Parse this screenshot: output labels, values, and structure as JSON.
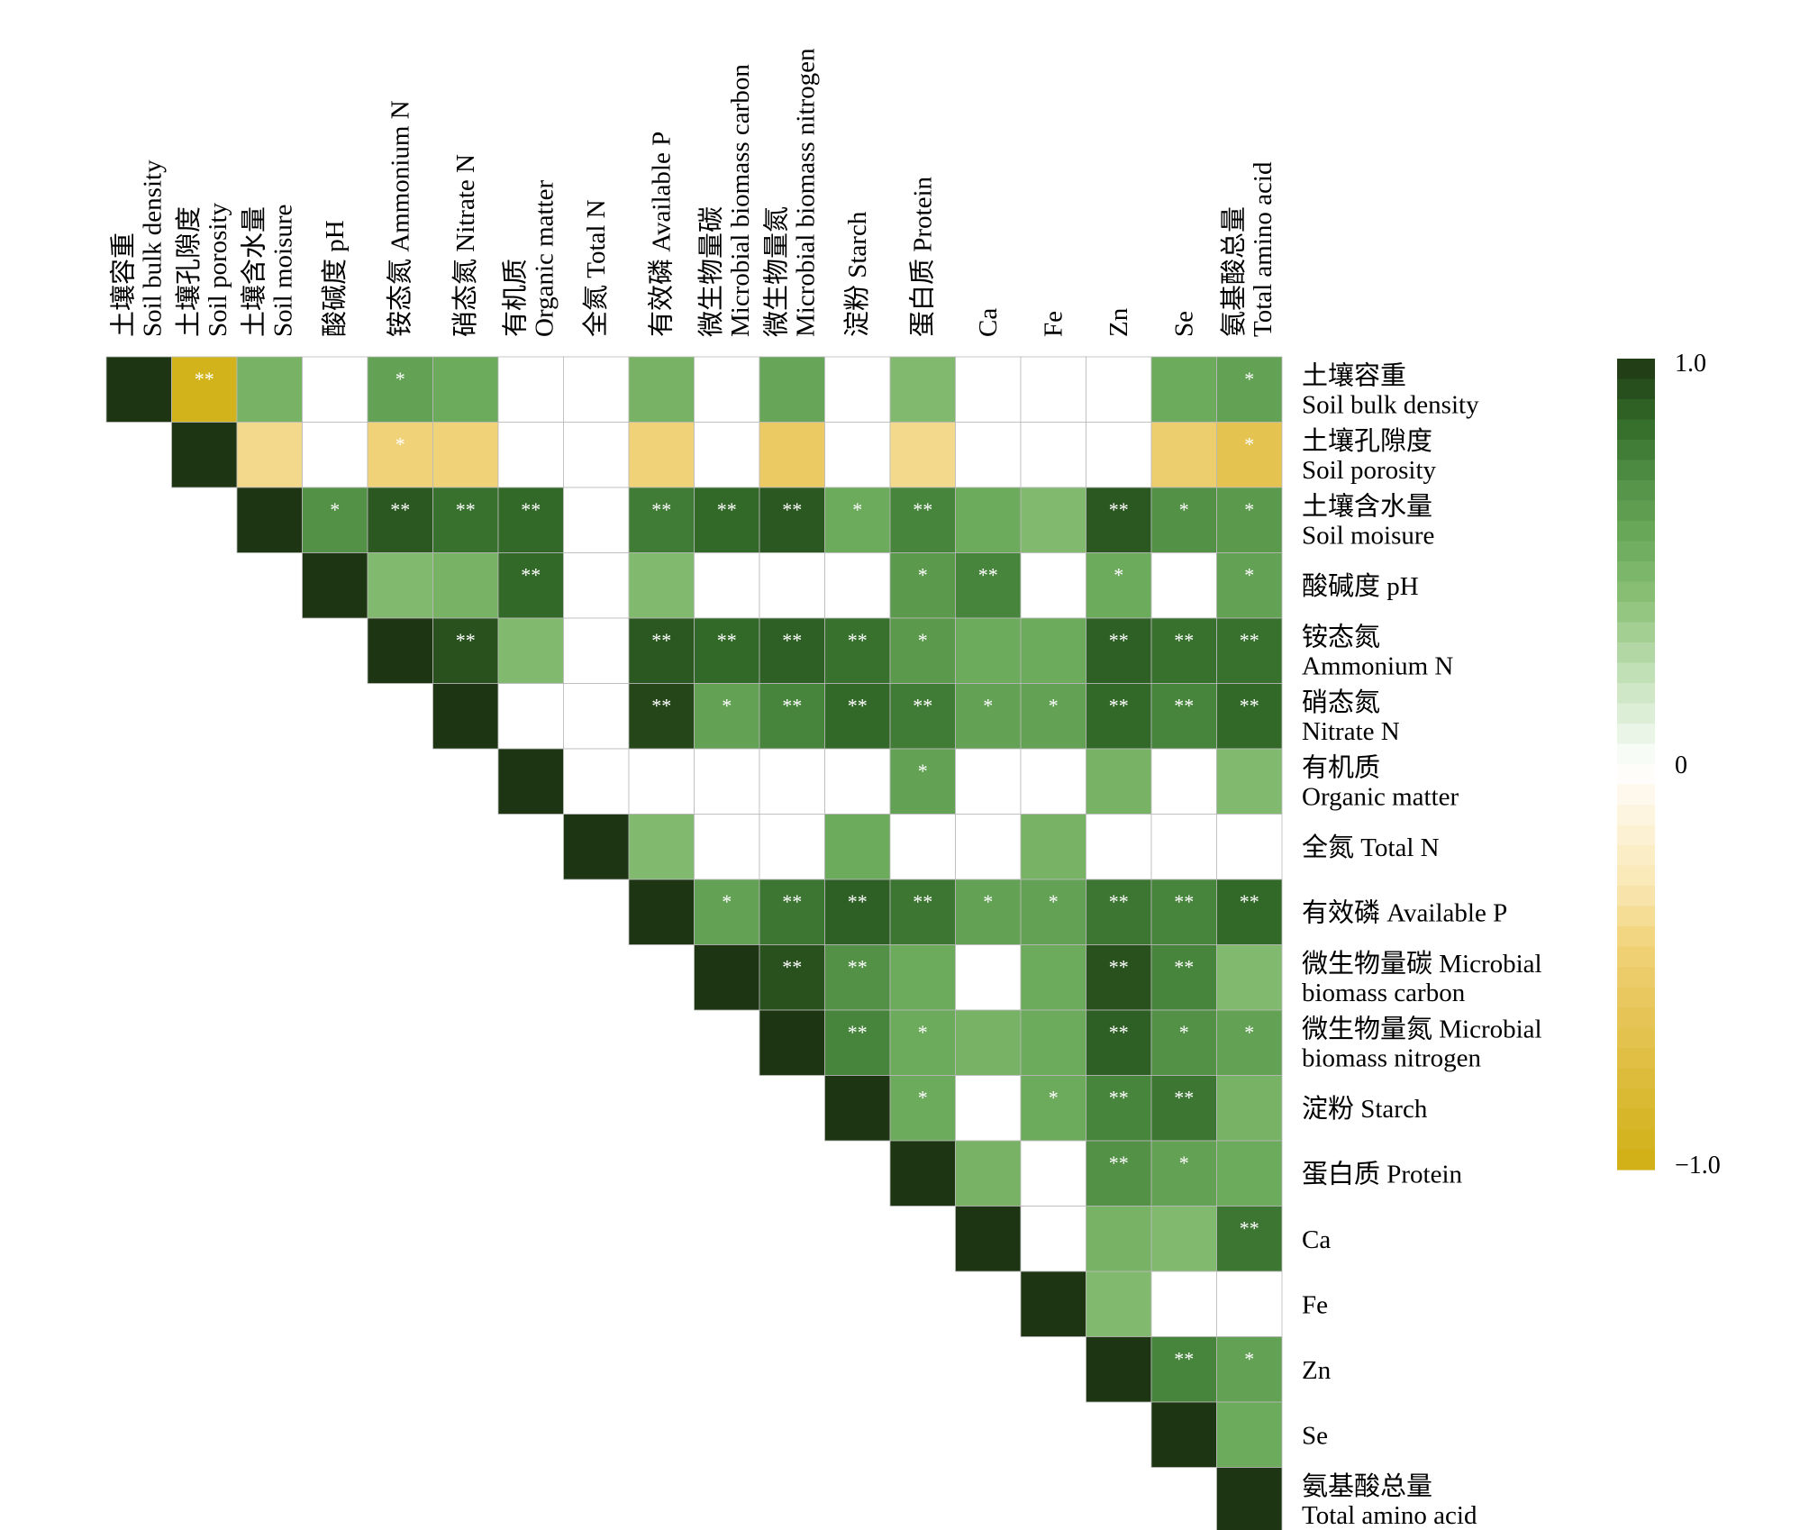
{
  "chart_data": {
    "type": "heatmap",
    "layout": "upper-triangle correlation matrix",
    "variables": [
      {
        "zh": "土壤容重",
        "en": "Soil bulk density"
      },
      {
        "zh": "土壤孔隙度",
        "en": "Soil porosity"
      },
      {
        "zh": "土壤含水量",
        "en": "Soil moisure"
      },
      {
        "zh": "酸碱度",
        "en": "pH"
      },
      {
        "zh": "铵态氮",
        "en": "Ammonium N"
      },
      {
        "zh": "硝态氮",
        "en": "Nitrate N"
      },
      {
        "zh": "有机质",
        "en": "Organic matter"
      },
      {
        "zh": "全氮",
        "en": "Total N"
      },
      {
        "zh": "有效磷",
        "en": "Available P"
      },
      {
        "zh": "微生物量碳",
        "en": "Microbial biomass carbon"
      },
      {
        "zh": "微生物量氮",
        "en": "Microbial biomass nitrogen"
      },
      {
        "zh": "淀粉",
        "en": "Starch"
      },
      {
        "zh": "蛋白质",
        "en": "Protein"
      },
      {
        "zh": "",
        "en": "Ca"
      },
      {
        "zh": "",
        "en": "Fe"
      },
      {
        "zh": "",
        "en": "Zn"
      },
      {
        "zh": "",
        "en": "Se"
      },
      {
        "zh": "氨基酸总量",
        "en": "Total amino acid"
      }
    ],
    "row_labels": [
      {
        "line1": "土壤容重",
        "line2": "Soil bulk density"
      },
      {
        "line1": "土壤孔隙度",
        "line2": "Soil porosity"
      },
      {
        "line1": "土壤含水量",
        "line2": "Soil moisure"
      },
      {
        "line1": "酸碱度 pH",
        "line2": ""
      },
      {
        "line1": "铵态氮",
        "line2": "Ammonium N"
      },
      {
        "line1": "硝态氮",
        "line2": "Nitrate N"
      },
      {
        "line1": "有机质",
        "line2": "Organic matter"
      },
      {
        "line1": "全氮 Total N",
        "line2": ""
      },
      {
        "line1": "有效磷 Available P",
        "line2": ""
      },
      {
        "line1": "微生物量碳 Microbial",
        "line2": "biomass carbon"
      },
      {
        "line1": "微生物量氮 Microbial",
        "line2": "biomass nitrogen"
      },
      {
        "line1": "淀粉 Starch",
        "line2": ""
      },
      {
        "line1": "蛋白质 Protein",
        "line2": ""
      },
      {
        "line1": "Ca",
        "line2": ""
      },
      {
        "line1": "Fe",
        "line2": ""
      },
      {
        "line1": "Zn",
        "line2": ""
      },
      {
        "line1": "Se",
        "line2": ""
      },
      {
        "line1": "氨基酸总量",
        "line2": "Total amino acid"
      }
    ],
    "col_labels": [
      {
        "line1": "土壤容重",
        "line2": "Soil bulk density"
      },
      {
        "line1": "土壤孔隙度",
        "line2": "Soil porosity"
      },
      {
        "line1": "土壤含水量",
        "line2": "Soil moisure"
      },
      {
        "line1": "酸碱度 pH",
        "line2": ""
      },
      {
        "line1": "铵态氮 Ammonium N",
        "line2": ""
      },
      {
        "line1": "硝态氮 Nitrate N",
        "line2": ""
      },
      {
        "line1": "有机质",
        "line2": "Organic matter"
      },
      {
        "line1": "全氮 Total N",
        "line2": ""
      },
      {
        "line1": "有效磷 Available P",
        "line2": ""
      },
      {
        "line1": "微生物量碳",
        "line2": "Microbial biomass carbon"
      },
      {
        "line1": "微生物量氮",
        "line2": "Microbial biomass nitrogen"
      },
      {
        "line1": "淀粉 Starch",
        "line2": ""
      },
      {
        "line1": "蛋白质 Protein",
        "line2": ""
      },
      {
        "line1": "Ca",
        "line2": ""
      },
      {
        "line1": "Fe",
        "line2": ""
      },
      {
        "line1": "Zn",
        "line2": ""
      },
      {
        "line1": "Se",
        "line2": ""
      },
      {
        "line1": "氨基酸总量",
        "line2": "Total amino acid"
      }
    ],
    "values": [
      [
        1.0,
        -0.95,
        0.5,
        0.0,
        0.6,
        0.55,
        0.0,
        0.0,
        0.5,
        0.0,
        0.58,
        0.0,
        0.45,
        0.0,
        0.0,
        0.0,
        0.55,
        0.6
      ],
      [
        null,
        1.0,
        -0.4,
        0.0,
        -0.45,
        -0.45,
        0.0,
        0.0,
        -0.45,
        0.0,
        -0.55,
        0.0,
        -0.4,
        0.0,
        0.0,
        0.0,
        -0.5,
        -0.65
      ],
      [
        null,
        null,
        1.0,
        0.7,
        0.9,
        0.82,
        0.85,
        0.0,
        0.78,
        0.85,
        0.9,
        0.55,
        0.75,
        0.55,
        0.45,
        0.9,
        0.7,
        0.65
      ],
      [
        null,
        null,
        null,
        1.0,
        0.45,
        0.5,
        0.85,
        0.0,
        0.45,
        0.0,
        0.0,
        0.0,
        0.65,
        0.75,
        0.0,
        0.55,
        0.0,
        0.6
      ],
      [
        null,
        null,
        null,
        null,
        1.0,
        0.92,
        0.45,
        0.0,
        0.9,
        0.85,
        0.88,
        0.82,
        0.65,
        0.55,
        0.55,
        0.88,
        0.82,
        0.82
      ],
      [
        null,
        null,
        null,
        null,
        null,
        1.0,
        0.0,
        0.0,
        0.95,
        0.6,
        0.75,
        0.85,
        0.78,
        0.6,
        0.6,
        0.85,
        0.75,
        0.85
      ],
      [
        null,
        null,
        null,
        null,
        null,
        null,
        1.0,
        0.0,
        0.0,
        0.0,
        0.0,
        0.0,
        0.6,
        0.0,
        0.0,
        0.5,
        0.0,
        0.45
      ],
      [
        null,
        null,
        null,
        null,
        null,
        null,
        null,
        1.0,
        0.45,
        0.0,
        0.0,
        0.55,
        0.0,
        0.0,
        0.5,
        0.0,
        0.0,
        0.0
      ],
      [
        null,
        null,
        null,
        null,
        null,
        null,
        null,
        null,
        1.0,
        0.6,
        0.8,
        0.88,
        0.8,
        0.6,
        0.6,
        0.8,
        0.75,
        0.85
      ],
      [
        null,
        null,
        null,
        null,
        null,
        null,
        null,
        null,
        null,
        1.0,
        0.92,
        0.7,
        0.55,
        0.0,
        0.55,
        0.92,
        0.75,
        0.45
      ],
      [
        null,
        null,
        null,
        null,
        null,
        null,
        null,
        null,
        null,
        null,
        1.0,
        0.75,
        0.55,
        0.5,
        0.55,
        0.88,
        0.7,
        0.6
      ],
      [
        null,
        null,
        null,
        null,
        null,
        null,
        null,
        null,
        null,
        null,
        null,
        1.0,
        0.55,
        0.0,
        0.55,
        0.75,
        0.8,
        0.5
      ],
      [
        null,
        null,
        null,
        null,
        null,
        null,
        null,
        null,
        null,
        null,
        null,
        null,
        1.0,
        0.5,
        0.0,
        0.7,
        0.6,
        0.55
      ],
      [
        null,
        null,
        null,
        null,
        null,
        null,
        null,
        null,
        null,
        null,
        null,
        null,
        null,
        1.0,
        0.0,
        0.5,
        0.45,
        0.8
      ],
      [
        null,
        null,
        null,
        null,
        null,
        null,
        null,
        null,
        null,
        null,
        null,
        null,
        null,
        null,
        1.0,
        0.45,
        0.0,
        0.0
      ],
      [
        null,
        null,
        null,
        null,
        null,
        null,
        null,
        null,
        null,
        null,
        null,
        null,
        null,
        null,
        null,
        1.0,
        0.75,
        0.6
      ],
      [
        null,
        null,
        null,
        null,
        null,
        null,
        null,
        null,
        null,
        null,
        null,
        null,
        null,
        null,
        null,
        null,
        1.0,
        0.55
      ],
      [
        null,
        null,
        null,
        null,
        null,
        null,
        null,
        null,
        null,
        null,
        null,
        null,
        null,
        null,
        null,
        null,
        null,
        1.0
      ]
    ],
    "significance": [
      [
        "",
        "**",
        "",
        "",
        "*",
        "",
        "",
        "",
        "",
        "",
        "",
        "",
        "",
        "",
        "",
        "",
        "",
        "*"
      ],
      [
        "",
        "",
        "",
        "",
        "*",
        "",
        "",
        "",
        "",
        "",
        "",
        "",
        "",
        "",
        "",
        "",
        "",
        "*"
      ],
      [
        "",
        "",
        "",
        "*",
        "**",
        "**",
        "**",
        "",
        "**",
        "**",
        "**",
        "*",
        "**",
        "",
        "",
        "**",
        "*",
        "*"
      ],
      [
        "",
        "",
        "",
        "",
        "",
        "",
        "**",
        "",
        "",
        "",
        "",
        "",
        "*",
        "**",
        "",
        "*",
        "",
        "*"
      ],
      [
        "",
        "",
        "",
        "",
        "",
        "**",
        "",
        "",
        "**",
        "**",
        "**",
        "**",
        "*",
        "",
        "",
        "**",
        "**",
        "**"
      ],
      [
        "",
        "",
        "",
        "",
        "",
        "",
        "",
        "",
        "**",
        "*",
        "**",
        "**",
        "**",
        "*",
        "*",
        "**",
        "**",
        "**"
      ],
      [
        "",
        "",
        "",
        "",
        "",
        "",
        "",
        "",
        "",
        "",
        "",
        "",
        "*",
        "",
        "",
        "",
        "",
        ""
      ],
      [
        "",
        "",
        "",
        "",
        "",
        "",
        "",
        "",
        "",
        "",
        "",
        "",
        "",
        "",
        "",
        "",
        "",
        ""
      ],
      [
        "",
        "",
        "",
        "",
        "",
        "",
        "",
        "",
        "",
        "*",
        "**",
        "**",
        "**",
        "*",
        "*",
        "**",
        "**",
        "**"
      ],
      [
        "",
        "",
        "",
        "",
        "",
        "",
        "",
        "",
        "",
        "",
        "**",
        "**",
        "",
        "",
        "",
        "**",
        "**",
        ""
      ],
      [
        "",
        "",
        "",
        "",
        "",
        "",
        "",
        "",
        "",
        "",
        "",
        "**",
        "*",
        "",
        "",
        "**",
        "*",
        "*"
      ],
      [
        "",
        "",
        "",
        "",
        "",
        "",
        "",
        "",
        "",
        "",
        "",
        "",
        "*",
        "",
        "*",
        "**",
        "**",
        ""
      ],
      [
        "",
        "",
        "",
        "",
        "",
        "",
        "",
        "",
        "",
        "",
        "",
        "",
        "",
        "",
        "",
        "**",
        "*",
        ""
      ],
      [
        "",
        "",
        "",
        "",
        "",
        "",
        "",
        "",
        "",
        "",
        "",
        "",
        "",
        "",
        "",
        "",
        "",
        "**"
      ],
      [
        "",
        "",
        "",
        "",
        "",
        "",
        "",
        "",
        "",
        "",
        "",
        "",
        "",
        "",
        "",
        "",
        "",
        ""
      ],
      [
        "",
        "",
        "",
        "",
        "",
        "",
        "",
        "",
        "",
        "",
        "",
        "",
        "",
        "",
        "",
        "",
        "**",
        "*"
      ],
      [
        "",
        "",
        "",
        "",
        "",
        "",
        "",
        "",
        "",
        "",
        "",
        "",
        "",
        "",
        "",
        "",
        "",
        ""
      ],
      [
        "",
        "",
        "",
        "",
        "",
        "",
        "",
        "",
        "",
        "",
        "",
        "",
        "",
        "",
        "",
        "",
        "",
        ""
      ]
    ],
    "colorbar": {
      "range": [
        -1.0,
        1.0
      ],
      "tick_labels": [
        "1.0",
        "0",
        "−1.0"
      ],
      "tick_values": [
        1.0,
        0.0,
        -1.0
      ],
      "colors": {
        "positive": "#1d3512",
        "zero": "#ffffff",
        "negative": "#cfb013"
      }
    },
    "legend_placement": "right"
  }
}
